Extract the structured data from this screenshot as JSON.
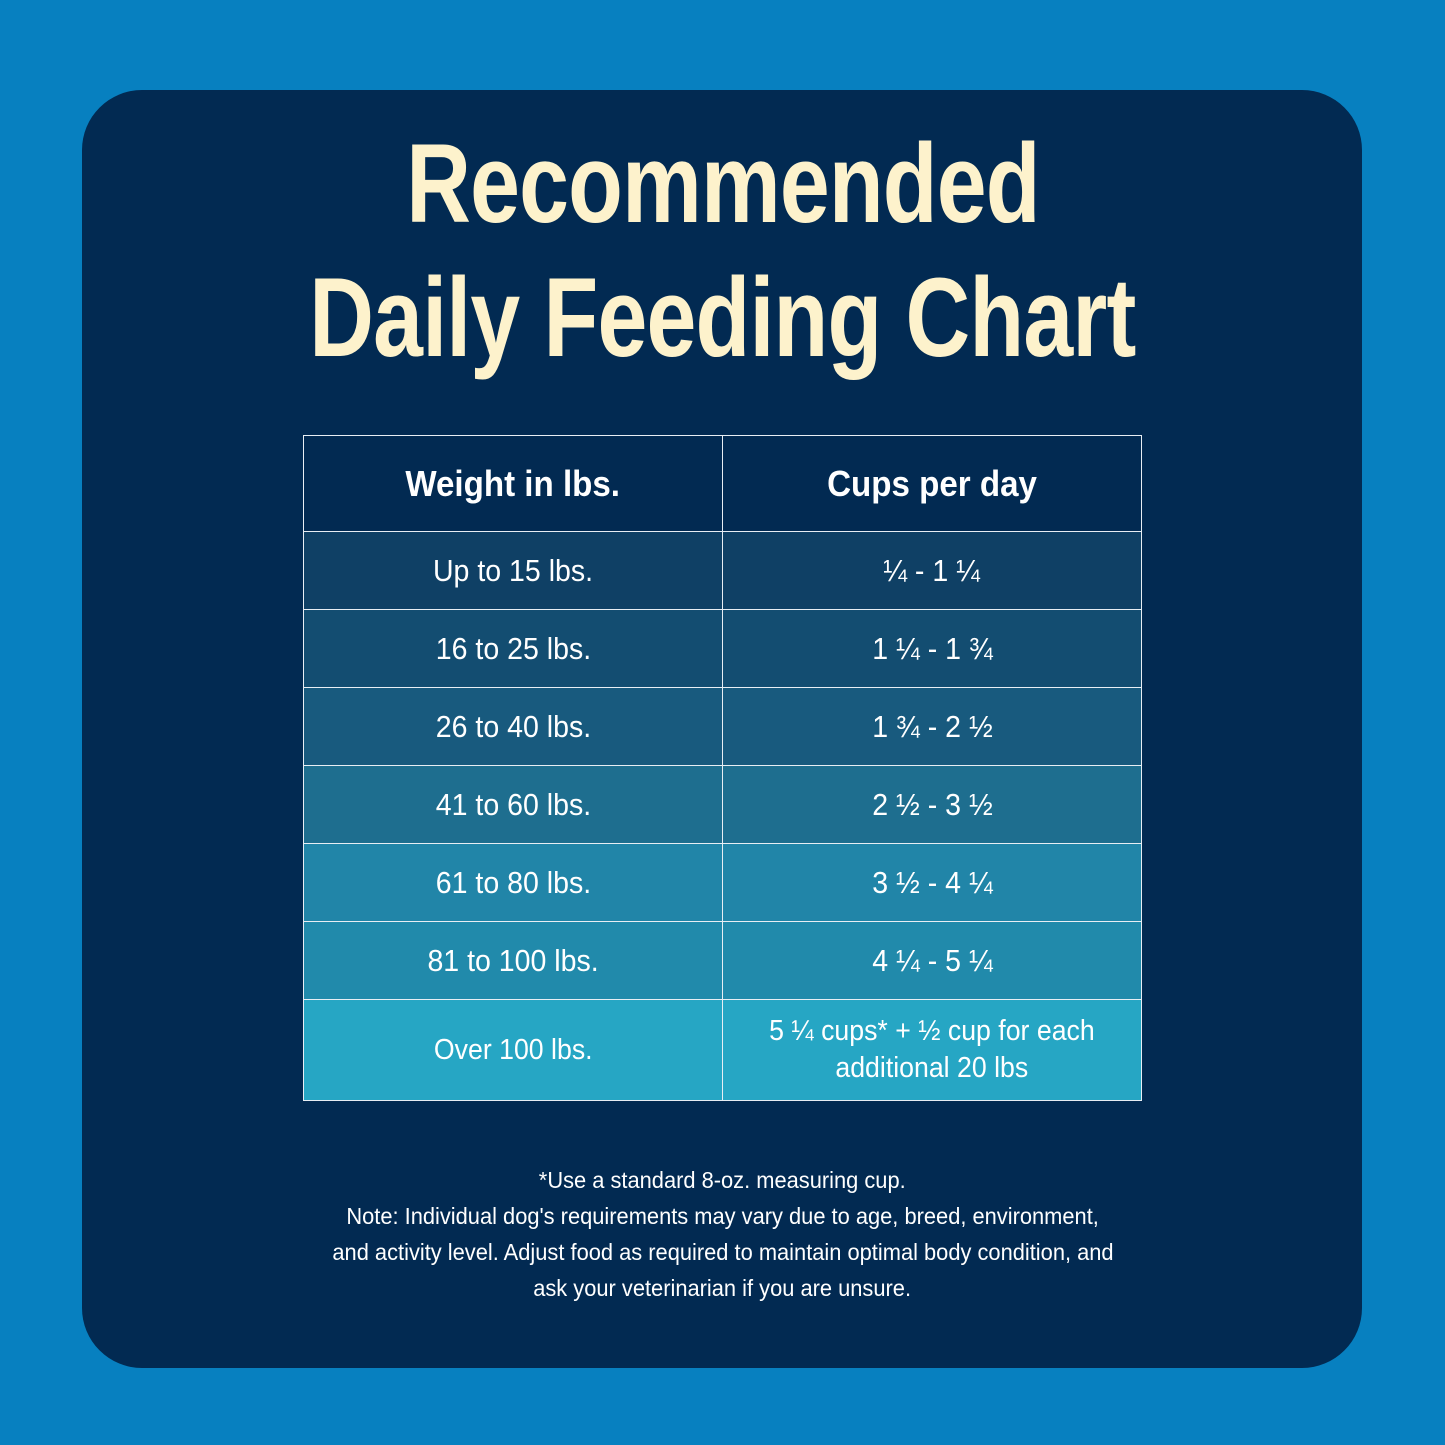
{
  "title": {
    "line1": "Recommended",
    "line2": "Daily Feeding Chart"
  },
  "colors": {
    "background": "#0780c0",
    "card": "#022a52",
    "title": "#fdf2cc"
  },
  "table": {
    "headers": [
      "Weight in lbs.",
      "Cups per day"
    ],
    "rows": [
      {
        "weight": "Up to 15 lbs.",
        "cups": "¼ - 1 ¼",
        "color": "#0f4065"
      },
      {
        "weight": "16 to 25 lbs.",
        "cups": "1 ¼ - 1 ¾",
        "color": "#134d71"
      },
      {
        "weight": "26 to 40 lbs.",
        "cups": "1 ¾ - 2 ½",
        "color": "#185a7e"
      },
      {
        "weight": "41 to 60 lbs.",
        "cups": "2 ½ - 3 ½",
        "color": "#1e6e8f"
      },
      {
        "weight": "61 to 80 lbs.",
        "cups": "3 ½ - 4 ¼",
        "color": "#2185a8"
      },
      {
        "weight": "81 to 100 lbs.",
        "cups": "4 ¼ - 5 ¼",
        "color": "#218aab"
      },
      {
        "weight": "Over 100 lbs.",
        "cups_line1": "5 ¼ cups* + ½ cup for each",
        "cups_line2": "additional 20 lbs",
        "color": "#26a6c4"
      }
    ]
  },
  "footer": {
    "lines": [
      "*Use a standard 8-oz. measuring cup.",
      "Note: Individual dog's requirements may vary due to age, breed, environment,",
      "and activity level. Adjust food as required to maintain optimal body condition, and",
      "ask your veterinarian if you are unsure."
    ]
  }
}
